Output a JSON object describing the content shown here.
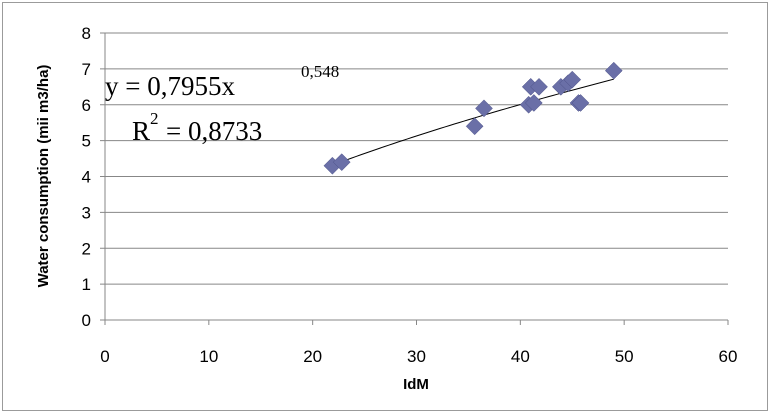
{
  "chart_data": {
    "type": "scatter",
    "xlabel": "IdM",
    "ylabel": "Water consumption (mii m3/ha)",
    "xlim": [
      0,
      60
    ],
    "ylim": [
      0,
      8
    ],
    "x_ticks": [
      "0",
      "10",
      "20",
      "30",
      "40",
      "50",
      "60"
    ],
    "y_ticks": [
      "0",
      "1",
      "2",
      "3",
      "4",
      "5",
      "6",
      "7",
      "8"
    ],
    "grid": "horizontal",
    "marker": "diamond",
    "marker_color": "#6a6fa7",
    "series": [
      {
        "points": [
          {
            "x": 21.9,
            "y": 4.3
          },
          {
            "x": 22.8,
            "y": 4.4
          },
          {
            "x": 35.6,
            "y": 5.4
          },
          {
            "x": 36.5,
            "y": 5.9
          },
          {
            "x": 40.8,
            "y": 6.0
          },
          {
            "x": 41.0,
            "y": 6.5
          },
          {
            "x": 41.3,
            "y": 6.05
          },
          {
            "x": 41.8,
            "y": 6.5
          },
          {
            "x": 43.9,
            "y": 6.5
          },
          {
            "x": 44.6,
            "y": 6.6
          },
          {
            "x": 45.0,
            "y": 6.7
          },
          {
            "x": 45.6,
            "y": 6.05
          },
          {
            "x": 45.8,
            "y": 6.05
          },
          {
            "x": 49.0,
            "y": 6.95
          }
        ]
      }
    ],
    "trendline": {
      "type": "power",
      "coefficient": 0.7955,
      "exponent": 0.548,
      "x_range": [
        21.9,
        49.0
      ],
      "color": "#000000"
    },
    "equation": {
      "base": "y = 0,7955x",
      "exponent": "0,548"
    },
    "r_squared": {
      "prefix": "R",
      "power": "2",
      "value": "= 0,8733"
    }
  }
}
